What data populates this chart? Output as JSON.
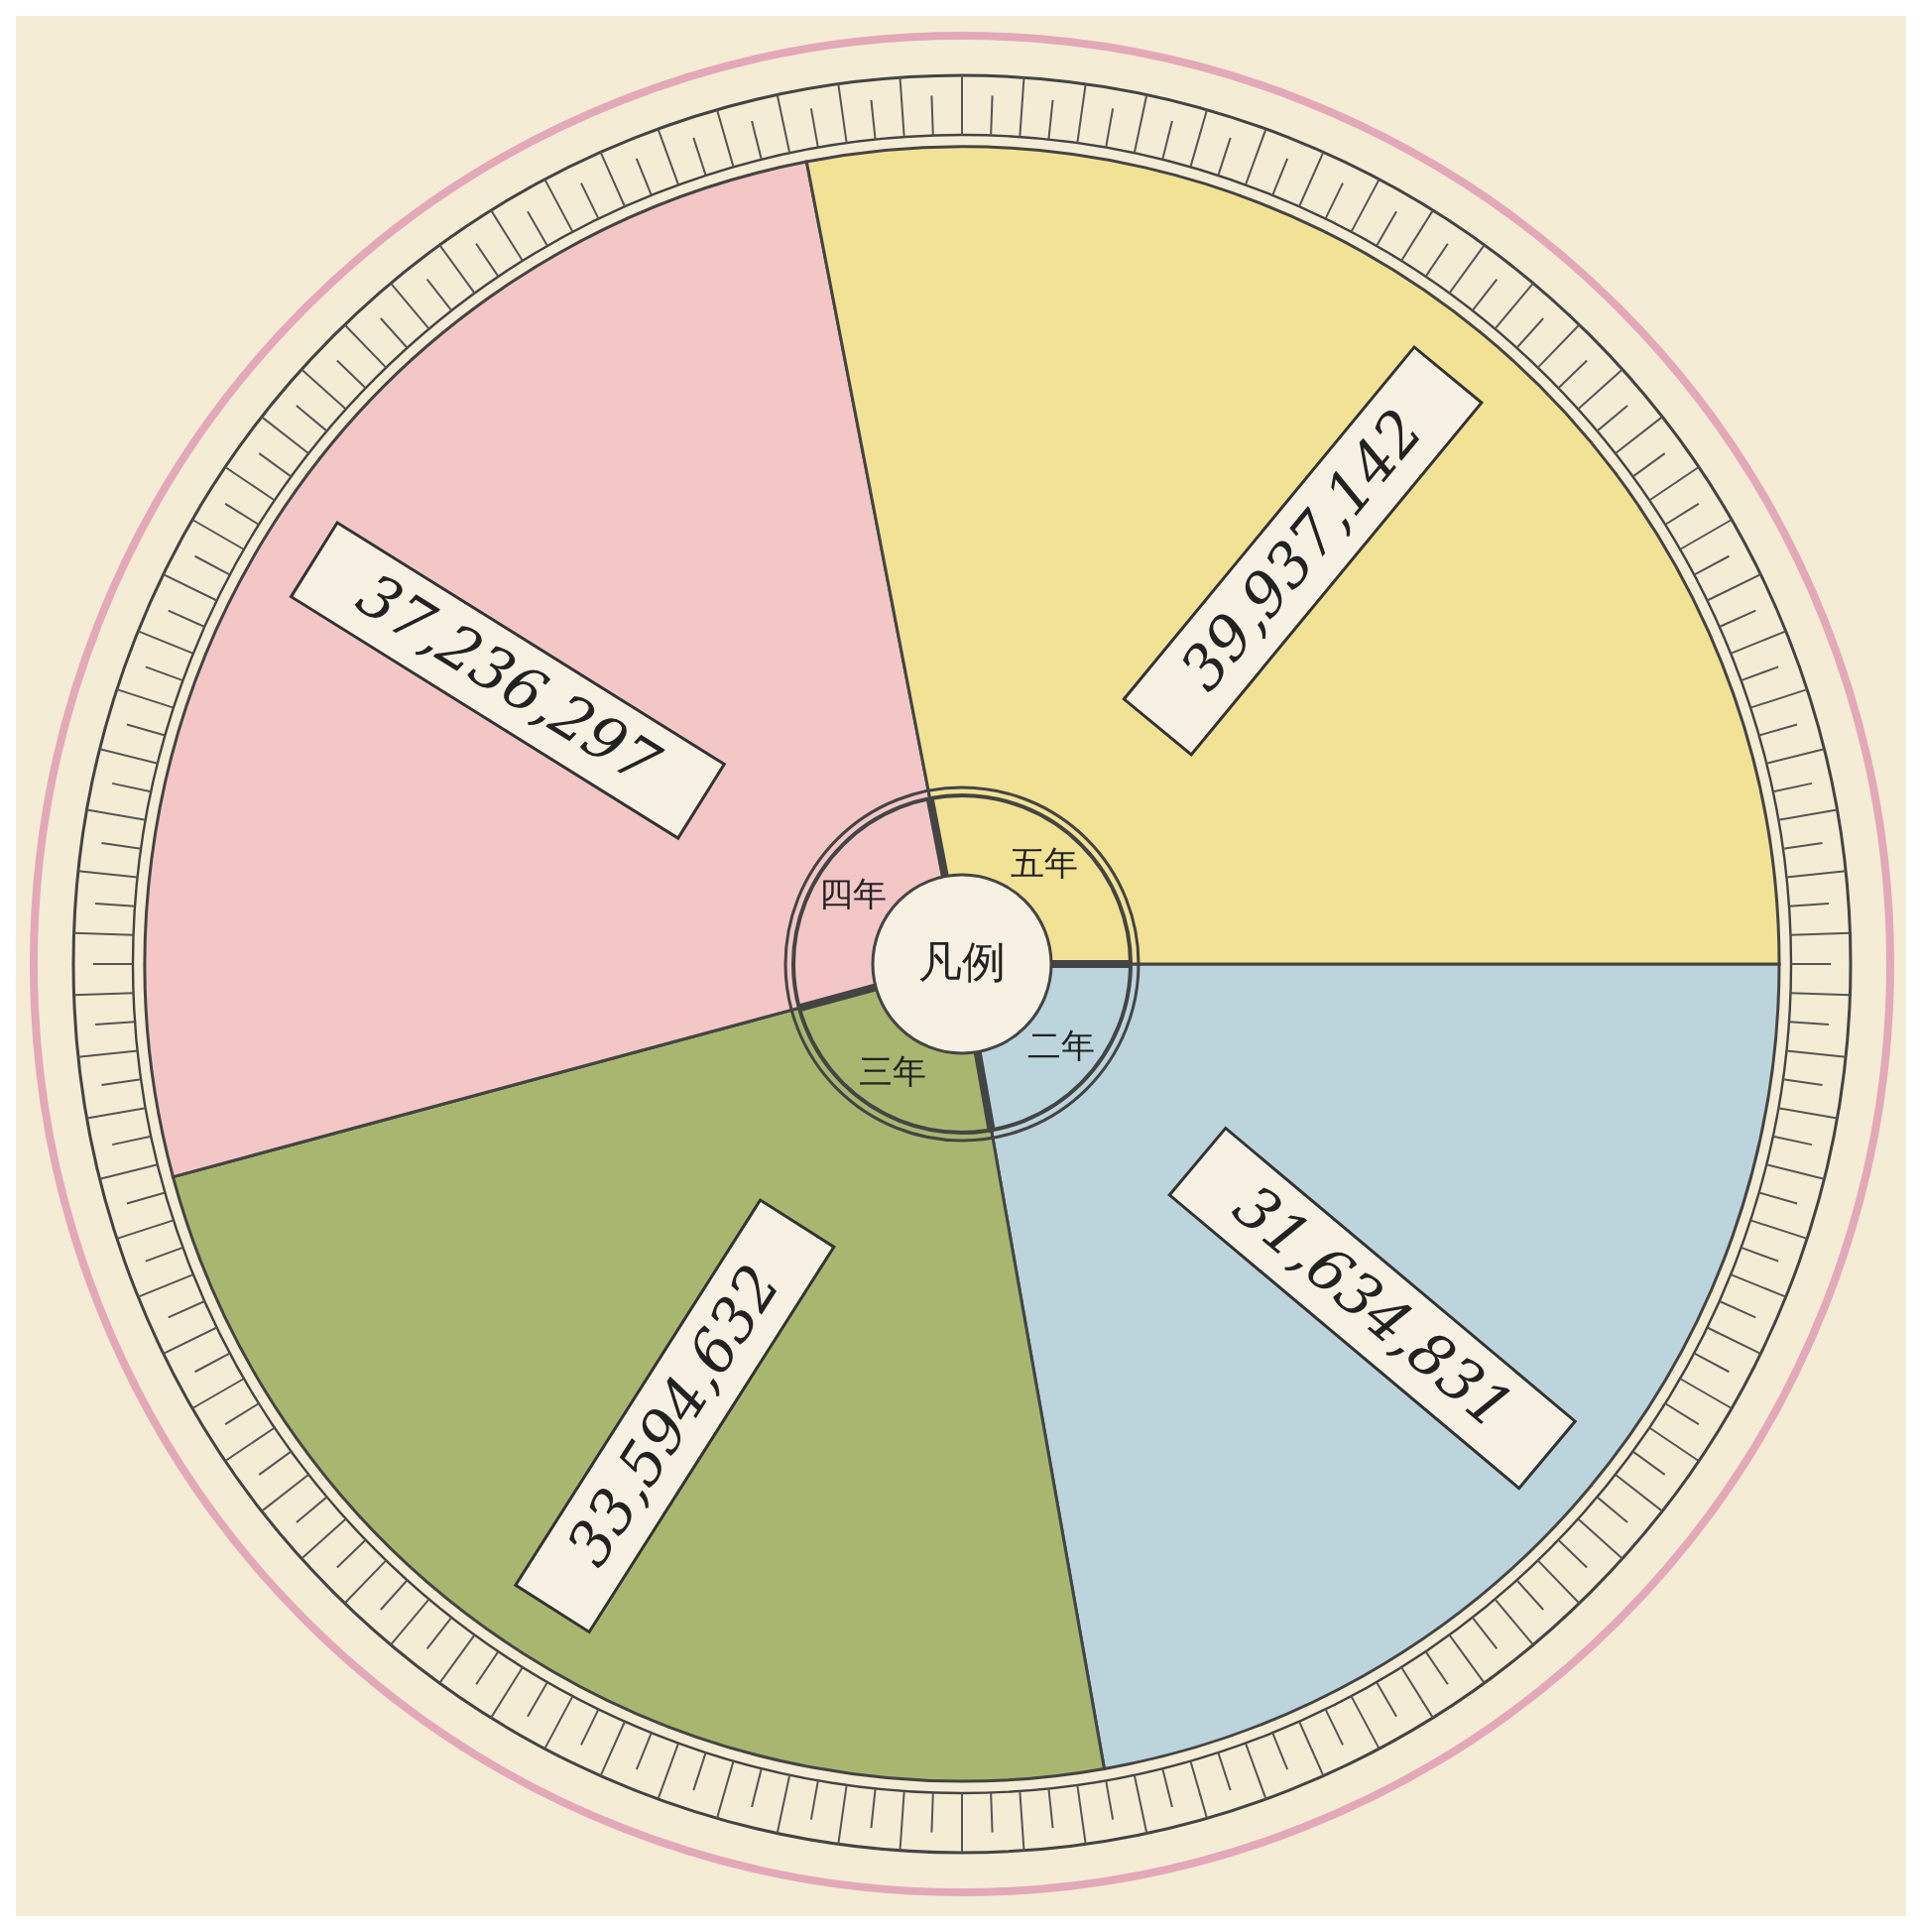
{
  "chart_data": {
    "type": "pie",
    "legend_title": "凡例",
    "categories": [
      "二年",
      "三年",
      "四年",
      "五年"
    ],
    "values": [
      31634831,
      33594632,
      37236297,
      39937142
    ],
    "value_labels": [
      "31,634,831",
      "33,594,632",
      "37,236,297",
      "39,937,142"
    ],
    "colors": [
      "#bcd4dc",
      "#a9b670",
      "#f2c7c6",
      "#f2e295"
    ]
  }
}
